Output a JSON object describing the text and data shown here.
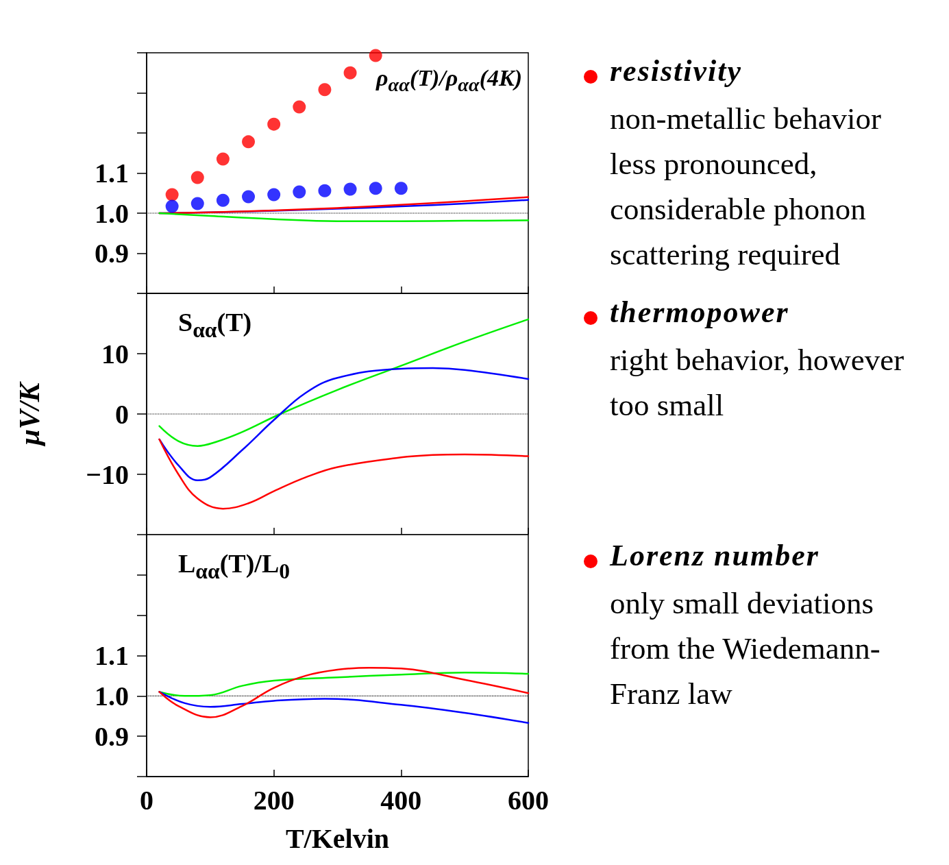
{
  "chart_data": [
    {
      "type": "line",
      "xlim": [
        0,
        600
      ],
      "xticks": [
        0,
        200,
        400,
        600
      ],
      "ylim": [
        0.8,
        1.4
      ],
      "yticks": [
        {
          "value": 0.8,
          "label": null
        },
        0.9,
        {
          "value": 1.0,
          "label": "1.0"
        },
        1.1,
        {
          "value": 1.2,
          "label": null
        },
        {
          "value": 1.3,
          "label": null
        },
        {
          "value": 1.4,
          "label": null
        }
      ],
      "tick_labels": "y",
      "marker": "none",
      "line_style": "solid",
      "series": [
        {
          "type": "scatter",
          "marker": "circle",
          "color": "#ff0000",
          "x": [
            40,
            80,
            120,
            160,
            200,
            240,
            280,
            320,
            360
          ],
          "values": [
            1.046,
            1.089,
            1.135,
            1.178,
            1.222,
            1.265,
            1.308,
            1.35,
            1.393
          ]
        },
        {
          "type": "scatter",
          "marker": "circle",
          "color": "#0000ff",
          "x": [
            40,
            80,
            120,
            160,
            200,
            240,
            280,
            320,
            360,
            400
          ],
          "values": [
            1.017,
            1.024,
            1.032,
            1.041,
            1.046,
            1.053,
            1.056,
            1.06,
            1.062,
            1.062
          ]
        },
        {
          "color": "#0000ff",
          "x": [
            20,
            100,
            200,
            300,
            400,
            500,
            600
          ],
          "values": [
            1.0,
            1.002,
            1.006,
            1.011,
            1.017,
            1.024,
            1.033
          ]
        },
        {
          "color": "#ff0000",
          "x": [
            20,
            100,
            200,
            300,
            400,
            500,
            600
          ],
          "values": [
            1.0,
            1.002,
            1.007,
            1.013,
            1.021,
            1.03,
            1.04
          ]
        },
        {
          "color": "#00ee00",
          "x": [
            20,
            100,
            200,
            300,
            400,
            500,
            600
          ],
          "values": [
            1.0,
            0.993,
            0.985,
            0.98,
            0.98,
            0.981,
            0.982
          ]
        }
      ],
      "ref_lines": [
        {
          "axis": "y",
          "value": 1.0,
          "color": "#000000",
          "line_style": "dotted"
        }
      ],
      "annotations": [
        "ρ$_{αα}$(T)/ρ$_{αα}$(4K)",
        "resistivity",
        "non-metallic behavior less pronounced, considerable phonon scattering required"
      ]
    },
    {
      "type": "line",
      "xlim": [
        0,
        600
      ],
      "xticks": [
        0,
        200,
        400,
        600
      ],
      "ylim": [
        -20,
        20
      ],
      "yticks": [
        {
          "value": -20,
          "label": null
        },
        -10,
        0,
        10,
        {
          "value": 20,
          "label": null
        }
      ],
      "tick_labels": "y",
      "marker": "none",
      "line_style": "solid",
      "ylabel": "μV/K",
      "series": [
        {
          "color": "#00ee00",
          "x": [
            20,
            50,
            80,
            110,
            150,
            210,
            300,
            400,
            500,
            600
          ],
          "values": [
            -2,
            -4.5,
            -5.3,
            -4.6,
            -3,
            0,
            4,
            8,
            12,
            15.7
          ]
        },
        {
          "color": "#0000ff",
          "x": [
            20,
            50,
            80,
            100,
            150,
            200,
            250,
            300,
            400,
            450,
            500,
            600
          ],
          "values": [
            -4.2,
            -8.5,
            -11,
            -10.5,
            -6,
            -1,
            3.5,
            6,
            7.5,
            7.6,
            7.3,
            5.8
          ]
        },
        {
          "color": "#ff0000",
          "x": [
            20,
            50,
            80,
            120,
            160,
            200,
            250,
            300,
            400,
            450,
            500,
            600
          ],
          "values": [
            -4.2,
            -10,
            -14,
            -15.7,
            -14.8,
            -12.8,
            -10.5,
            -8.8,
            -7.2,
            -6.8,
            -6.7,
            -7
          ]
        }
      ],
      "ref_lines": [
        {
          "axis": "y",
          "value": 0,
          "color": "#000000",
          "line_style": "dotted"
        }
      ],
      "annotations": [
        "S$_{αα}$(T)",
        "thermopower",
        "right behavior, however too small"
      ]
    },
    {
      "type": "line",
      "xlim": [
        0,
        600
      ],
      "xticks": [
        0,
        200,
        400,
        600
      ],
      "ylim": [
        0.8,
        1.4
      ],
      "yticks": [
        {
          "value": 0.8,
          "label": null
        },
        0.9,
        {
          "value": 1.0,
          "label": "1.0"
        },
        1.1,
        {
          "value": 1.2,
          "label": null
        },
        {
          "value": 1.3,
          "label": null
        },
        {
          "value": 1.4,
          "label": null
        }
      ],
      "marker": "none",
      "line_style": "solid",
      "xlabel": "T/Kelvin",
      "series": [
        {
          "color": "#00ee00",
          "x": [
            20,
            60,
            100,
            150,
            200,
            300,
            400,
            500,
            600
          ],
          "values": [
            1.01,
            1.0,
            1.002,
            1.025,
            1.038,
            1.046,
            1.053,
            1.058,
            1.055
          ]
        },
        {
          "color": "#0000ff",
          "x": [
            20,
            60,
            100,
            150,
            200,
            280,
            400,
            500,
            600
          ],
          "values": [
            1.01,
            0.982,
            0.973,
            0.98,
            0.988,
            0.993,
            0.978,
            0.958,
            0.933
          ]
        },
        {
          "color": "#ff0000",
          "x": [
            20,
            50,
            100,
            150,
            200,
            250,
            300,
            350,
            400,
            500,
            600
          ],
          "values": [
            1.01,
            0.975,
            0.947,
            0.975,
            1.02,
            1.05,
            1.065,
            1.07,
            1.068,
            1.04,
            1.007
          ]
        }
      ],
      "ref_lines": [
        {
          "axis": "y",
          "value": 1.0,
          "color": "#000000",
          "line_style": "dotted"
        }
      ],
      "annotations": [
        "L$_{αα}$(T)/L$_{0}$",
        "Lorenz number",
        "only small deviations from the Wiedemann-Franz law"
      ]
    }
  ]
}
